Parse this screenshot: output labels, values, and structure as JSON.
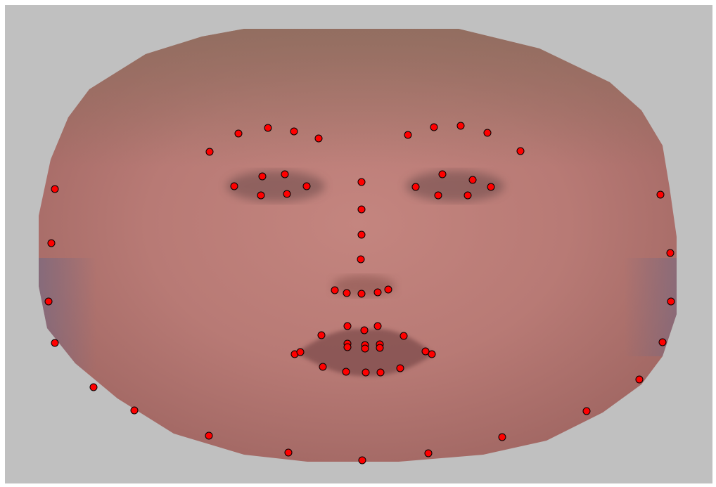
{
  "image": {
    "background_color": "#c0c0c0",
    "frame_color": "#ffffff",
    "subject": "face",
    "face_palette": {
      "skin_mid": "#b87a75",
      "skin_light": "#c4857f",
      "skin_shadow": "#a16763",
      "hair_top": "#8f6e5f",
      "jaw_tint": "#7c6a80",
      "eye_shadow": "#6a4a4a",
      "lip_dark": "#7a4848"
    },
    "landmark_style": {
      "fill": "#ff0000",
      "stroke": "#000000"
    },
    "landmark_count": 68
  }
}
